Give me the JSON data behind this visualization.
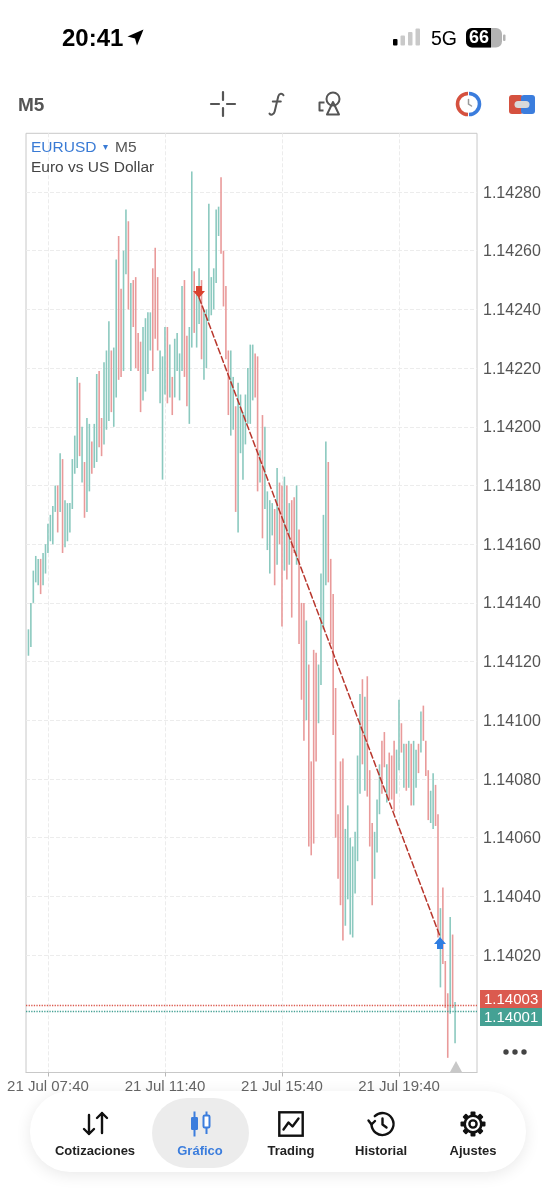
{
  "chart_data": {
    "type": "bar",
    "title": "EURUSD",
    "subtitle": "Euro vs US Dollar",
    "annotations": [
      "M5",
      "20:41",
      "5G",
      "66",
      "M5",
      "Cotizaciones",
      "Gráfico",
      "Trading",
      "Historial",
      "Ajustes"
    ],
    "series": [
      {
        "x": [
          "--07-21T07:00",
          "--07-21T07:05",
          "--07-21T07:10",
          "--07-21T07:15",
          "--07-21T07:20",
          "--07-21T07:25",
          "--07-21T07:30",
          "--07-21T07:35",
          "--07-21T07:40",
          "--07-21T07:45",
          "--07-21T07:50",
          "--07-21T07:55",
          "--07-21T08:00",
          "--07-21T08:05",
          "--07-21T08:10",
          "--07-21T08:15",
          "--07-21T08:20",
          "--07-21T08:25",
          "--07-21T08:30",
          "--07-21T08:35",
          "--07-21T08:40",
          "--07-21T08:45",
          "--07-21T08:50",
          "--07-21T08:55",
          "--07-21T09:00",
          "--07-21T09:05",
          "--07-21T09:10",
          "--07-21T09:15",
          "--07-21T09:20",
          "--07-21T09:25",
          "--07-21T09:30",
          "--07-21T09:35",
          "--07-21T09:40",
          "--07-21T09:45",
          "--07-21T09:50",
          "--07-21T09:55",
          "--07-21T10:00",
          "--07-21T10:05",
          "--07-21T10:10",
          "--07-21T10:15",
          "--07-21T10:20",
          "--07-21T10:25",
          "--07-21T10:30",
          "--07-21T10:35",
          "--07-21T10:40",
          "--07-21T10:45",
          "--07-21T10:50",
          "--07-21T10:55",
          "--07-21T11:00",
          "--07-21T11:05",
          "--07-21T11:10",
          "--07-21T11:15",
          "--07-21T11:20",
          "--07-21T11:25",
          "--07-21T11:30",
          "--07-21T11:35",
          "--07-21T11:40",
          "--07-21T11:45",
          "--07-21T11:50",
          "--07-21T11:55",
          "--07-21T12:00",
          "--07-21T12:05",
          "--07-21T12:10",
          "--07-21T12:15",
          "--07-21T12:20",
          "--07-21T12:25",
          "--07-21T12:30",
          "--07-21T12:35",
          "--07-21T12:40",
          "--07-21T12:45",
          "--07-21T12:50",
          "--07-21T12:55",
          "--07-21T13:00",
          "--07-21T13:05",
          "--07-21T13:10",
          "--07-21T13:15",
          "--07-21T13:20",
          "--07-21T13:25",
          "--07-21T13:30",
          "--07-21T13:35",
          "--07-21T13:40",
          "--07-21T13:45",
          "--07-21T13:50",
          "--07-21T13:55",
          "--07-21T14:00",
          "--07-21T14:05",
          "--07-21T14:10",
          "--07-21T14:15",
          "--07-21T14:20",
          "--07-21T14:25",
          "--07-21T14:30",
          "--07-21T14:35",
          "--07-21T14:40",
          "--07-21T14:45",
          "--07-21T14:50",
          "--07-21T14:55",
          "--07-21T15:00",
          "--07-21T15:05",
          "--07-21T15:10",
          "--07-21T15:15",
          "--07-21T15:20",
          "--07-21T15:25",
          "--07-21T15:30",
          "--07-21T15:35",
          "--07-21T15:40",
          "--07-21T15:45",
          "--07-21T15:50",
          "--07-21T15:55",
          "--07-21T16:00",
          "--07-21T16:05",
          "--07-21T16:10",
          "--07-21T16:15",
          "--07-21T16:20",
          "--07-21T16:25",
          "--07-21T16:30",
          "--07-21T16:35",
          "--07-21T16:40",
          "--07-21T16:45",
          "--07-21T16:50",
          "--07-21T16:55",
          "--07-21T17:00",
          "--07-21T17:05",
          "--07-21T17:10",
          "--07-21T17:15",
          "--07-21T17:20",
          "--07-21T17:25",
          "--07-21T17:30",
          "--07-21T17:35",
          "--07-21T17:40",
          "--07-21T17:45",
          "--07-21T17:50",
          "--07-21T17:55",
          "--07-21T18:00",
          "--07-21T18:05",
          "--07-21T18:10",
          "--07-21T18:15",
          "--07-21T18:20",
          "--07-21T18:25",
          "--07-21T18:30",
          "--07-21T18:35",
          "--07-21T18:40",
          "--07-21T18:45",
          "--07-21T18:50",
          "--07-21T18:55",
          "--07-21T19:00",
          "--07-21T19:05",
          "--07-21T19:10",
          "--07-21T19:15",
          "--07-21T19:20",
          "--07-21T19:25",
          "--07-21T19:30",
          "--07-21T19:35",
          "--07-21T19:40",
          "--07-21T19:45",
          "--07-21T19:50",
          "--07-21T19:55",
          "--07-21T20:00",
          "--07-21T20:05",
          "--07-21T20:10",
          "--07-21T20:15",
          "--07-21T20:20",
          "--07-21T20:25",
          "--07-21T20:30",
          "--07-21T20:35",
          "--07-21T20:40",
          "--07-21T20:45",
          "--07-21T20:50",
          "--07-21T20:55",
          "--07-21T21:00",
          "--07-21T21:05",
          "--07-21T21:10",
          "--07-21T21:15",
          "--07-21T21:20",
          "--07-21T21:25",
          "--07-21T21:30",
          "--07-21T21:35"
        ],
        "base": [
          1.14122,
          1.14125,
          1.1414,
          1.14147,
          1.14146,
          1.14143,
          1.14146,
          1.1415,
          1.14157,
          1.14161,
          1.1416,
          1.14171,
          1.14164,
          1.14171,
          1.14157,
          1.14159,
          1.14161,
          1.14164,
          1.14172,
          1.14184,
          1.14186,
          1.1419,
          1.14181,
          1.14169,
          1.14171,
          1.14178,
          1.14184,
          1.14186,
          1.14188,
          1.14193,
          1.1419,
          1.14194,
          1.14199,
          1.14202,
          1.14205,
          1.142,
          1.1421,
          1.14216,
          1.14217,
          1.14219,
          1.14252,
          1.1424,
          1.14219,
          1.14234,
          1.1422,
          1.14219,
          1.14205,
          1.14209,
          1.14212,
          1.14218,
          1.14226,
          1.14219,
          1.1423,
          1.14226,
          1.14208,
          1.14182,
          1.14211,
          1.14208,
          1.1421,
          1.14204,
          1.1421,
          1.14219,
          1.14209,
          1.14219,
          1.14217,
          1.14207,
          1.14201,
          1.14227,
          1.14232,
          1.14227,
          1.14235,
          1.14223,
          1.14216,
          1.1422,
          1.14236,
          1.14238,
          1.1424,
          1.14249,
          1.14265,
          1.14259,
          1.14241,
          1.14223,
          1.14204,
          1.14197,
          1.14199,
          1.14171,
          1.14164,
          1.14191,
          1.14182,
          1.14194,
          1.14201,
          1.14201,
          1.14209,
          1.1421,
          1.14178,
          1.14181,
          1.14162,
          1.14172,
          1.14158,
          1.1415,
          1.14163,
          1.14146,
          1.14153,
          1.1416,
          1.14132,
          1.14151,
          1.14148,
          1.14153,
          1.14135,
          1.14157,
          1.14153,
          1.14126,
          1.14107,
          1.14093,
          1.141,
          1.14057,
          1.14054,
          1.14058,
          1.14086,
          1.14099,
          1.14112,
          1.14131,
          1.14146,
          1.14147,
          1.14126,
          1.14095,
          1.1406,
          1.14046,
          1.14037,
          1.14025,
          1.1403,
          1.14039,
          1.14027,
          1.14026,
          1.14041,
          1.14052,
          1.14075,
          1.14085,
          1.14076,
          1.14074,
          1.14057,
          1.14037,
          1.14046,
          1.14055,
          1.14068,
          1.14075,
          1.14084,
          1.14072,
          1.14073,
          1.14073,
          1.14069,
          1.14075,
          1.14083,
          1.14089,
          1.14077,
          1.14076,
          1.14077,
          1.14071,
          1.14071,
          1.14077,
          1.14082,
          1.14089,
          1.14093,
          1.14081,
          1.14066,
          1.14065,
          1.14063,
          1.14064,
          1.14026,
          1.14009,
          1.14017,
          1.14002,
          1.13985,
          1.14,
          1.14002,
          1.1399
        ],
        "values": [
          9e-05,
          0.00015,
          0.00011,
          9e-05,
          9e-05,
          0.00012,
          0.00011,
          0.0001,
          0.0001,
          9e-05,
          0.00013,
          9e-05,
          0.00016,
          0.0002,
          0.00032,
          0.00016,
          0.00013,
          0.0001,
          0.00017,
          0.00013,
          0.00031,
          0.00025,
          0.00019,
          0.00019,
          0.00032,
          0.00023,
          0.00011,
          0.00015,
          0.0003,
          0.00026,
          0.00013,
          0.00028,
          0.00027,
          0.00034,
          0.00021,
          0.00027,
          0.00047,
          0.00049,
          0.0003,
          0.00041,
          0.00022,
          0.0003,
          0.0003,
          0.00016,
          0.00031,
          0.00013,
          0.00024,
          0.00025,
          0.00025,
          0.00021,
          0.00013,
          0.00035,
          0.00031,
          0.00025,
          0.00018,
          0.00042,
          0.00023,
          0.00026,
          0.00018,
          0.00013,
          0.0002,
          0.00013,
          0.00016,
          0.00029,
          0.00033,
          0.00024,
          0.00033,
          0.0006,
          0.00021,
          0.00018,
          0.00019,
          0.00027,
          0.00024,
          0.0002,
          0.0004,
          0.00013,
          0.00014,
          0.00025,
          0.0001,
          0.00026,
          0.00019,
          0.00025,
          0.00022,
          0.00029,
          0.00018,
          0.00036,
          0.00051,
          0.0002,
          0.00023,
          0.00017,
          0.00019,
          0.00027,
          0.00019,
          0.00015,
          0.00046,
          0.00011,
          0.00042,
          0.00028,
          0.0002,
          0.00025,
          0.00011,
          0.00026,
          0.00033,
          0.00021,
          0.00048,
          0.00032,
          0.00032,
          0.00021,
          0.0004,
          0.00019,
          0.00027,
          0.00039,
          0.00033,
          0.00047,
          0.00034,
          0.00062,
          0.00032,
          0.00066,
          0.00037,
          0.0002,
          0.00038,
          0.00039,
          0.00049,
          0.00041,
          0.00029,
          0.00048,
          0.00051,
          0.00022,
          0.00049,
          0.00062,
          0.00033,
          0.00032,
          0.00033,
          0.00031,
          0.00021,
          0.00036,
          0.00034,
          0.00029,
          0.00032,
          0.00041,
          0.00026,
          0.00028,
          0.00016,
          0.00018,
          0.00017,
          0.00018,
          0.00012,
          0.00013,
          0.00016,
          0.00015,
          0.00024,
          0.00015,
          0.00024,
          0.0001,
          0.00015,
          0.00016,
          0.00016,
          0.00021,
          0.00022,
          0.00013,
          0.0001,
          0.00014,
          0.00012,
          0.00012,
          0.00017,
          0.00011,
          0.00019,
          0.00014,
          0.00042,
          0.00027,
          0.00026,
          0.00016,
          0.00022,
          0.00033,
          0.00025,
          0.00014
        ],
        "colors": [
          "#8bc9bf",
          "#8bc9bf",
          "#8bc9bf",
          "#8bc9bf",
          "#8bc9bf",
          "#e99a9a",
          "#8bc9bf",
          "#8bc9bf",
          "#8bc9bf",
          "#8bc9bf",
          "#8bc9bf",
          "#8bc9bf",
          "#e99a9a",
          "#8bc9bf",
          "#e99a9a",
          "#8bc9bf",
          "#8bc9bf",
          "#8bc9bf",
          "#8bc9bf",
          "#8bc9bf",
          "#8bc9bf",
          "#e99a9a",
          "#8bc9bf",
          "#e99a9a",
          "#8bc9bf",
          "#8bc9bf",
          "#e99a9a",
          "#8bc9bf",
          "#8bc9bf",
          "#e99a9a",
          "#e99a9a",
          "#8bc9bf",
          "#8bc9bf",
          "#8bc9bf",
          "#e99a9a",
          "#8bc9bf",
          "#8bc9bf",
          "#e99a9a",
          "#e99a9a",
          "#8bc9bf",
          "#8bc9bf",
          "#e99a9a",
          "#8bc9bf",
          "#e99a9a",
          "#e99a9a",
          "#e99a9a",
          "#e99a9a",
          "#8bc9bf",
          "#8bc9bf",
          "#8bc9bf",
          "#8bc9bf",
          "#e99a9a",
          "#e99a9a",
          "#e99a9a",
          "#8bc9bf",
          "#8bc9bf",
          "#8bc9bf",
          "#e99a9a",
          "#8bc9bf",
          "#e99a9a",
          "#8bc9bf",
          "#8bc9bf",
          "#8bc9bf",
          "#8bc9bf",
          "#e99a9a",
          "#e99a9a",
          "#8bc9bf",
          "#8bc9bf",
          "#e99a9a",
          "#8bc9bf",
          "#8bc9bf",
          "#e99a9a",
          "#8bc9bf",
          "#8bc9bf",
          "#8bc9bf",
          "#8bc9bf",
          "#8bc9bf",
          "#8bc9bf",
          "#8bc9bf",
          "#e99a9a",
          "#e99a9a",
          "#e99a9a",
          "#e99a9a",
          "#8bc9bf",
          "#8bc9bf",
          "#e99a9a",
          "#8bc9bf",
          "#8bc9bf",
          "#8bc9bf",
          "#8bc9bf",
          "#8bc9bf",
          "#8bc9bf",
          "#8bc9bf",
          "#e99a9a",
          "#e99a9a",
          "#8bc9bf",
          "#e99a9a",
          "#8bc9bf",
          "#8bc9bf",
          "#8bc9bf",
          "#8bc9bf",
          "#e99a9a",
          "#8bc9bf",
          "#e99a9a",
          "#e99a9a",
          "#8bc9bf",
          "#e99a9a",
          "#8bc9bf",
          "#e99a9a",
          "#e99a9a",
          "#8bc9bf",
          "#e99a9a",
          "#e99a9a",
          "#e99a9a",
          "#8bc9bf",
          "#e99a9a",
          "#e99a9a",
          "#e99a9a",
          "#e99a9a",
          "#8bc9bf",
          "#8bc9bf",
          "#8bc9bf",
          "#8bc9bf",
          "#e99a9a",
          "#e99a9a",
          "#e99a9a",
          "#e99a9a",
          "#e99a9a",
          "#e99a9a",
          "#e99a9a",
          "#8bc9bf",
          "#8bc9bf",
          "#8bc9bf",
          "#8bc9bf",
          "#8bc9bf",
          "#8bc9bf",
          "#8bc9bf",
          "#e99a9a",
          "#8bc9bf",
          "#e99a9a",
          "#e99a9a",
          "#e99a9a",
          "#8bc9bf",
          "#8bc9bf",
          "#8bc9bf",
          "#e99a9a",
          "#e99a9a",
          "#8bc9bf",
          "#e99a9a",
          "#e99a9a",
          "#e99a9a",
          "#8bc9bf",
          "#8bc9bf",
          "#e99a9a",
          "#8bc9bf",
          "#e99a9a",
          "#8bc9bf",
          "#e99a9a",
          "#8bc9bf",
          "#8bc9bf",
          "#e99a9a",
          "#8bc9bf",
          "#e99a9a",
          "#e99a9a",
          "#e99a9a",
          "#8bc9bf",
          "#8bc9bf",
          "#e99a9a",
          "#e99a9a",
          "#8bc9bf",
          "#e99a9a",
          "#e99a9a",
          "#e99a9a",
          "#8bc9bf",
          "#e99a9a",
          "#8bc9bf"
        ]
      },
      {
        "type": "line",
        "x": [
          "--07-21T12:50",
          "--07-21T21:05"
        ],
        "values": [
          1.14244,
          1.14026
        ],
        "color": "#b8372d",
        "line_style": "dashed",
        "marker": "none"
      }
    ],
    "xlim": [
      "--07-21T06:55",
      "--07-21T22:20"
    ],
    "xticks": [
      {
        "value": "--07-21T07:40",
        "label": "21 Jul 07:40"
      },
      {
        "value": "--07-21T11:40",
        "label": "21 Jul 11:40"
      },
      {
        "value": "--07-21T15:40",
        "label": "21 Jul 15:40"
      },
      {
        "value": "--07-21T19:40",
        "label": "21 Jul 19:40"
      }
    ],
    "ylim": [
      1.1398,
      1.143
    ],
    "yticks": [
      {
        "value": 1.1402,
        "label": "1.14020"
      },
      {
        "value": 1.1404,
        "label": "1.14040"
      },
      {
        "value": 1.1406,
        "label": "1.14060"
      },
      {
        "value": 1.1408,
        "label": "1.14080"
      },
      {
        "value": 1.141,
        "label": "1.14100"
      },
      {
        "value": 1.1412,
        "label": "1.14120"
      },
      {
        "value": 1.1414,
        "label": "1.14140"
      },
      {
        "value": 1.1416,
        "label": "1.14160"
      },
      {
        "value": 1.1418,
        "label": "1.14180"
      },
      {
        "value": 1.142,
        "label": "1.14200"
      },
      {
        "value": 1.1422,
        "label": "1.14220"
      },
      {
        "value": 1.1424,
        "label": "1.14240"
      },
      {
        "value": 1.1426,
        "label": "1.14260"
      },
      {
        "value": 1.1428,
        "label": "1.14280"
      }
    ],
    "ref_lines": [
      {
        "axis": "y",
        "value": 1.14003,
        "label": "1.14003",
        "color": "#db5a4f",
        "line_style": "dotted"
      },
      {
        "axis": "y",
        "value": 1.14001,
        "label": "1.14001",
        "color": "#45a194",
        "line_style": "dotted"
      }
    ],
    "grid": true
  }
}
